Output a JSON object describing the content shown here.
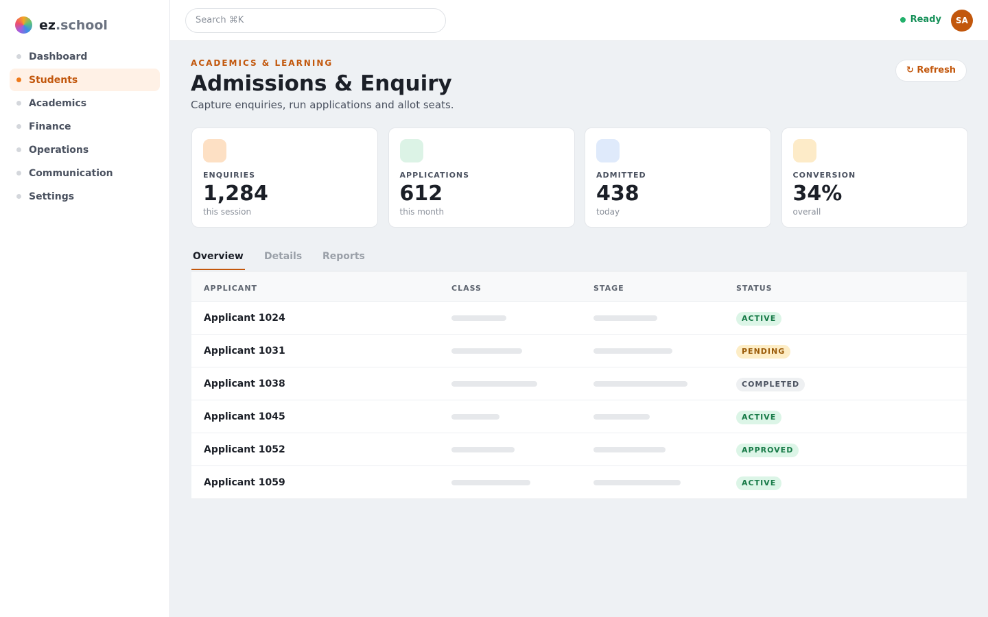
{
  "brand": {
    "prefix": "ez",
    "suffix": ".school"
  },
  "nav": [
    {
      "label": "Dashboard",
      "active": false
    },
    {
      "label": "Students",
      "active": true
    },
    {
      "label": "Academics",
      "active": false
    },
    {
      "label": "Finance",
      "active": false
    },
    {
      "label": "Operations",
      "active": false
    },
    {
      "label": "Communication",
      "active": false
    },
    {
      "label": "Settings",
      "active": false
    }
  ],
  "search": {
    "placeholder": "Search ⌘K"
  },
  "status": "Ready",
  "avatar": "SA",
  "header": {
    "eyebrow": "ACADEMICS & LEARNING",
    "title": "Admissions & Enquiry",
    "subtitle": "Capture enquiries, run applications and allot seats.",
    "action": "↻ Refresh"
  },
  "stats": [
    {
      "label": "ENQUIRIES",
      "value": "1,284",
      "note": "this session",
      "color": "#fde0c4"
    },
    {
      "label": "APPLICATIONS",
      "value": "612",
      "note": "this month",
      "color": "#dcf3e6"
    },
    {
      "label": "ADMITTED",
      "value": "438",
      "note": "today",
      "color": "#dfeafb"
    },
    {
      "label": "CONVERSION",
      "value": "34%",
      "note": "overall",
      "color": "#fdebc8"
    }
  ],
  "tabs": [
    {
      "label": "Overview",
      "active": true
    },
    {
      "label": "Details",
      "active": false
    },
    {
      "label": "Reports",
      "active": false
    }
  ],
  "table": {
    "columns": [
      "APPLICANT",
      "CLASS",
      "STAGE",
      "STATUS"
    ],
    "rows": [
      {
        "applicant": "Applicant 1024",
        "status": "ACTIVE",
        "tone": "green"
      },
      {
        "applicant": "Applicant 1031",
        "status": "PENDING",
        "tone": "amber"
      },
      {
        "applicant": "Applicant 1038",
        "status": "COMPLETED",
        "tone": "gray"
      },
      {
        "applicant": "Applicant 1045",
        "status": "ACTIVE",
        "tone": "green"
      },
      {
        "applicant": "Applicant 1052",
        "status": "APPROVED",
        "tone": "green"
      },
      {
        "applicant": "Applicant 1059",
        "status": "ACTIVE",
        "tone": "green"
      }
    ]
  }
}
